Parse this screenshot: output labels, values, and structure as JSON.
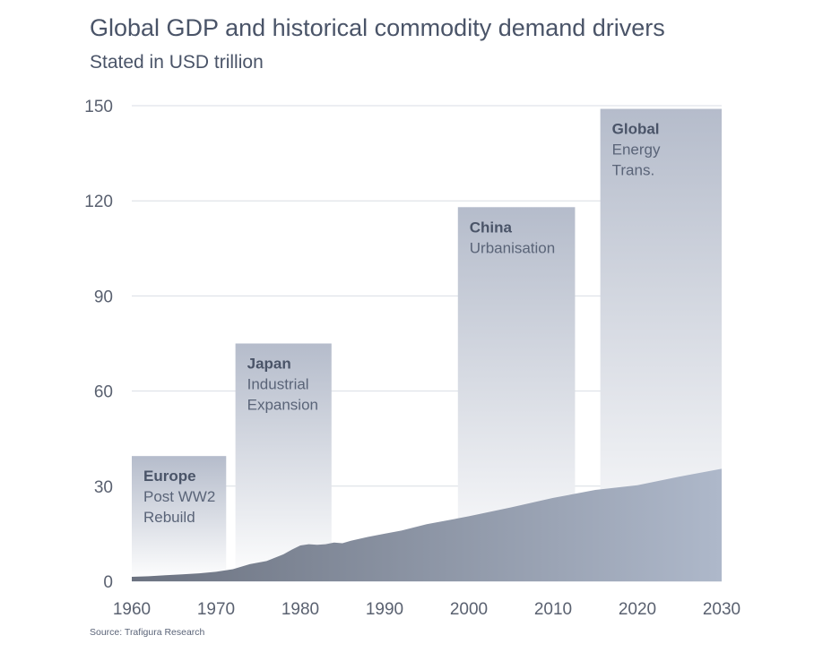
{
  "header": {
    "title": "Global GDP and historical commodity demand drivers",
    "subtitle": "Stated in USD trillion"
  },
  "footer": {
    "source": "Source: Trafigura Research"
  },
  "colors": {
    "gridline": "#d9dde4",
    "area_left": "#6b7280",
    "area_right": "#aeb8ca",
    "panel_top": "#b5bccb",
    "panel_bottom": "#ffffff"
  },
  "chart_data": {
    "type": "area",
    "title": "Global GDP and historical commodity demand drivers",
    "subtitle": "Stated in USD trillion",
    "xlabel": "",
    "ylabel": "",
    "xlim": [
      1960,
      2030
    ],
    "ylim": [
      0,
      150
    ],
    "x_ticks": [
      1960,
      1970,
      1980,
      1990,
      2000,
      2010,
      2020,
      2030
    ],
    "y_ticks": [
      0,
      30,
      60,
      90,
      120,
      150
    ],
    "grid": true,
    "series": [
      {
        "values": [
          {
            "x": 1960,
            "y": 1.4
          },
          {
            "x": 1962,
            "y": 1.6
          },
          {
            "x": 1964,
            "y": 1.9
          },
          {
            "x": 1966,
            "y": 2.2
          },
          {
            "x": 1968,
            "y": 2.5
          },
          {
            "x": 1970,
            "y": 3.0
          },
          {
            "x": 1972,
            "y": 3.8
          },
          {
            "x": 1974,
            "y": 5.4
          },
          {
            "x": 1976,
            "y": 6.4
          },
          {
            "x": 1978,
            "y": 8.5
          },
          {
            "x": 1979,
            "y": 10.0
          },
          {
            "x": 1980,
            "y": 11.3
          },
          {
            "x": 1981,
            "y": 11.7
          },
          {
            "x": 1982,
            "y": 11.5
          },
          {
            "x": 1983,
            "y": 11.7
          },
          {
            "x": 1984,
            "y": 12.2
          },
          {
            "x": 1985,
            "y": 12.0
          },
          {
            "x": 1986,
            "y": 12.8
          },
          {
            "x": 1988,
            "y": 14.0
          },
          {
            "x": 1990,
            "y": 15.0
          },
          {
            "x": 1992,
            "y": 16.0
          },
          {
            "x": 1995,
            "y": 18.0
          },
          {
            "x": 2000,
            "y": 20.5
          },
          {
            "x": 2005,
            "y": 23.3
          },
          {
            "x": 2010,
            "y": 26.3
          },
          {
            "x": 2015,
            "y": 28.8
          },
          {
            "x": 2020,
            "y": 30.3
          },
          {
            "x": 2025,
            "y": 33.0
          },
          {
            "x": 2030,
            "y": 35.5
          }
        ]
      }
    ],
    "eras": [
      {
        "title": "Europe",
        "lines": [
          "Post WW2",
          "Rebuild"
        ],
        "x_start": 1960,
        "x_end": 1971.2,
        "y_top": 39.5
      },
      {
        "title": "Japan",
        "lines": [
          "Industrial",
          "Expansion"
        ],
        "x_start": 1972.3,
        "x_end": 1983.7,
        "y_top": 75
      },
      {
        "title": "China",
        "lines": [
          "Urbanisation"
        ],
        "x_start": 1998.7,
        "x_end": 2012.6,
        "y_top": 118
      },
      {
        "title": "Global",
        "lines": [
          "Energy",
          "Trans."
        ],
        "x_start": 2015.6,
        "x_end": 2030,
        "y_top": 149
      }
    ]
  }
}
